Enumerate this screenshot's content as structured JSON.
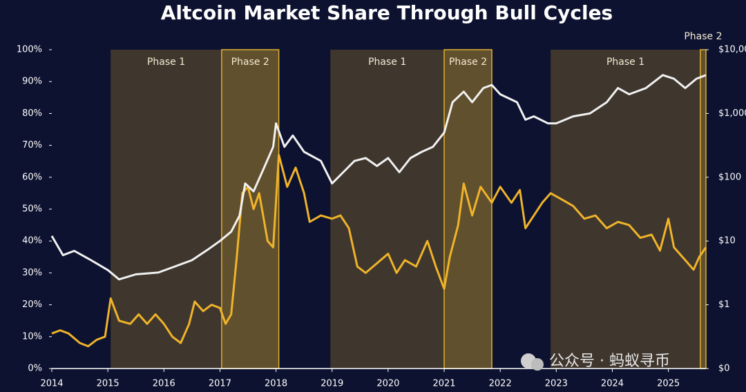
{
  "chart_data": {
    "type": "line",
    "title": "Altcoin Market Share Through Bull Cycles",
    "annotation": "公众号 · 蚂蚁寻币",
    "xlim": [
      2014,
      2025.67
    ],
    "xticks": [
      2014,
      2015,
      2016,
      2017,
      2018,
      2019,
      2020,
      2021,
      2022,
      2023,
      2024,
      2025
    ],
    "ylim": [
      0,
      100
    ],
    "yticks": [
      {
        "value": 0,
        "label": "0%"
      },
      {
        "value": 10,
        "label": "10%"
      },
      {
        "value": 20,
        "label": "20%"
      },
      {
        "value": 30,
        "label": "30%"
      },
      {
        "value": 40,
        "label": "40%"
      },
      {
        "value": 50,
        "label": "50%"
      },
      {
        "value": 60,
        "label": "60%"
      },
      {
        "value": 70,
        "label": "70%"
      },
      {
        "value": 80,
        "label": "80%"
      },
      {
        "value": 90,
        "label": "90%"
      },
      {
        "value": 100,
        "label": "100%"
      }
    ],
    "y2lim": [
      0.1,
      10000
    ],
    "y2log": true,
    "y2ticks": [
      {
        "value": 0.1,
        "label": "$0"
      },
      {
        "value": 1,
        "label": "$1"
      },
      {
        "value": 10,
        "label": "$10"
      },
      {
        "value": 100,
        "label": "$100"
      },
      {
        "value": 1000,
        "label": "$1,000"
      },
      {
        "value": 10000,
        "label": "$10,000"
      }
    ],
    "phases": [
      {
        "label": "Phase 1",
        "start": 2015.05,
        "end": 2017.03,
        "kind": 1
      },
      {
        "label": "Phase 2",
        "start": 2017.03,
        "end": 2018.05,
        "kind": 2
      },
      {
        "label": "Phase 1",
        "start": 2018.97,
        "end": 2021.0,
        "kind": 1
      },
      {
        "label": "Phase 2",
        "start": 2021.0,
        "end": 2021.85,
        "kind": 2
      },
      {
        "label": "Phase 1",
        "start": 2022.9,
        "end": 2025.57,
        "kind": 1
      },
      {
        "label": "Phase 2",
        "start": 2025.57,
        "end": 2025.67,
        "kind": 2
      }
    ],
    "series": [
      {
        "color": "#f0b42a",
        "x": [
          2014.0,
          2014.15,
          2014.3,
          2014.5,
          2014.65,
          2014.8,
          2014.95,
          2015.05,
          2015.2,
          2015.4,
          2015.55,
          2015.7,
          2015.85,
          2016.0,
          2016.15,
          2016.3,
          2016.45,
          2016.55,
          2016.7,
          2016.85,
          2017.0,
          2017.1,
          2017.2,
          2017.3,
          2017.4,
          2017.5,
          2017.6,
          2017.7,
          2017.85,
          2017.95,
          2018.05,
          2018.2,
          2018.35,
          2018.5,
          2018.6,
          2018.8,
          2019.0,
          2019.15,
          2019.3,
          2019.45,
          2019.6,
          2019.8,
          2020.0,
          2020.15,
          2020.3,
          2020.5,
          2020.7,
          2020.85,
          2021.0,
          2021.1,
          2021.25,
          2021.35,
          2021.5,
          2021.65,
          2021.85,
          2022.0,
          2022.2,
          2022.35,
          2022.45,
          2022.6,
          2022.75,
          2022.9,
          2023.1,
          2023.3,
          2023.5,
          2023.7,
          2023.9,
          2024.1,
          2024.3,
          2024.5,
          2024.7,
          2024.85,
          2025.0,
          2025.1,
          2025.3,
          2025.45,
          2025.55,
          2025.67
        ],
        "values": [
          11,
          12,
          11,
          8,
          7,
          9,
          10,
          22,
          15,
          14,
          17,
          14,
          17,
          14,
          10,
          8,
          14,
          21,
          18,
          20,
          19,
          14,
          17,
          35,
          55,
          57,
          50,
          55,
          40,
          38,
          67,
          57,
          63,
          55,
          46,
          48,
          47,
          48,
          44,
          32,
          30,
          33,
          36,
          30,
          34,
          32,
          40,
          32,
          25,
          35,
          45,
          58,
          48,
          57,
          52,
          57,
          52,
          56,
          44,
          48,
          52,
          55,
          53,
          51,
          47,
          48,
          44,
          46,
          45,
          41,
          42,
          37,
          47,
          38,
          34,
          31,
          35,
          38
        ]
      },
      {
        "color": "#f2f2f2",
        "axis": "y2",
        "x": [
          2014.0,
          2014.2,
          2014.4,
          2014.7,
          2015.0,
          2015.2,
          2015.5,
          2015.9,
          2016.2,
          2016.5,
          2016.8,
          2017.0,
          2017.2,
          2017.35,
          2017.45,
          2017.6,
          2017.8,
          2017.95,
          2018.0,
          2018.15,
          2018.3,
          2018.5,
          2018.8,
          2019.0,
          2019.2,
          2019.4,
          2019.6,
          2019.8,
          2020.0,
          2020.2,
          2020.4,
          2020.6,
          2020.8,
          2021.0,
          2021.15,
          2021.35,
          2021.5,
          2021.7,
          2021.85,
          2022.0,
          2022.3,
          2022.45,
          2022.6,
          2022.85,
          2023.0,
          2023.3,
          2023.6,
          2023.9,
          2024.1,
          2024.3,
          2024.6,
          2024.9,
          2025.1,
          2025.3,
          2025.5,
          2025.67
        ],
        "values": [
          12,
          6,
          7,
          5,
          3.5,
          2.5,
          3,
          3.2,
          4,
          5,
          7.5,
          10,
          14,
          25,
          80,
          60,
          150,
          300,
          700,
          300,
          450,
          250,
          180,
          80,
          120,
          180,
          200,
          150,
          200,
          120,
          200,
          250,
          300,
          500,
          1500,
          2200,
          1500,
          2500,
          2800,
          2000,
          1500,
          800,
          900,
          700,
          700,
          900,
          1000,
          1500,
          2500,
          2000,
          2500,
          4000,
          3500,
          2500,
          3500,
          4000
        ]
      }
    ]
  }
}
